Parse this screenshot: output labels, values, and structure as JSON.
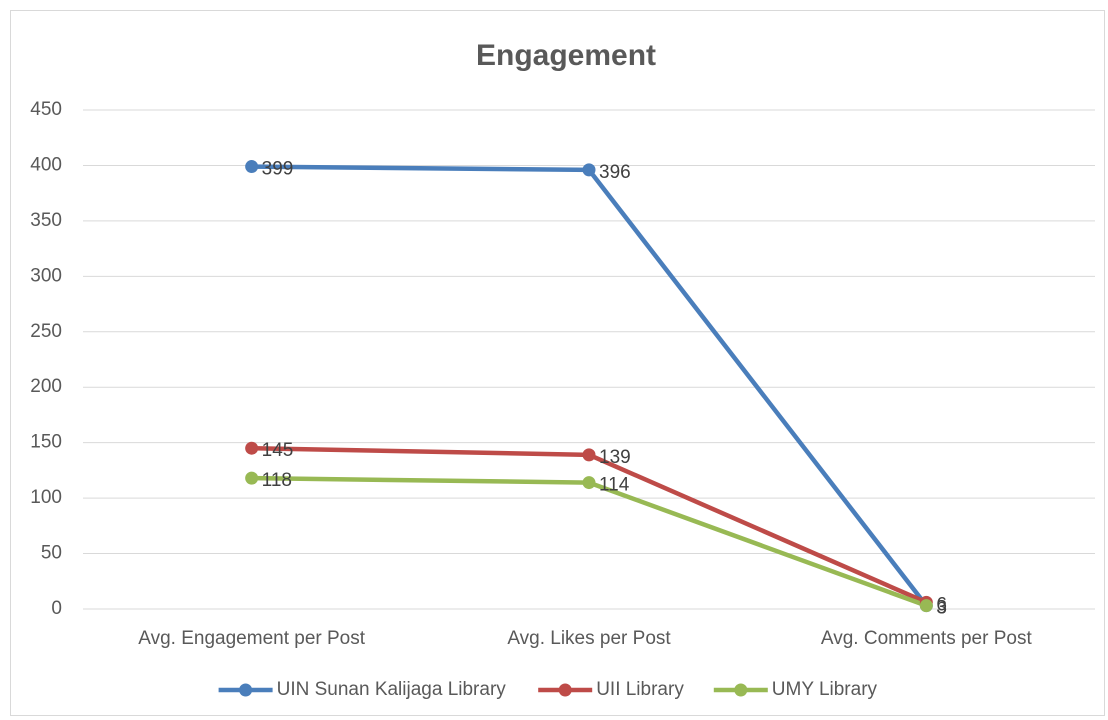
{
  "chart_data": {
    "type": "line",
    "title": "Engagement",
    "categories": [
      "Avg. Engagement per Post",
      "Avg. Likes per Post",
      "Avg. Comments per Post"
    ],
    "series": [
      {
        "name": "UIN Sunan Kalijaga Library",
        "color": "#4a7ebb",
        "values": [
          399,
          396,
          3
        ]
      },
      {
        "name": "UII Library",
        "color": "#be4b48",
        "values": [
          145,
          139,
          6
        ]
      },
      {
        "name": "UMY Library",
        "color": "#98b954",
        "values": [
          118,
          114,
          3
        ]
      }
    ],
    "ylim": [
      0,
      450
    ],
    "yticks": [
      0,
      50,
      100,
      150,
      200,
      250,
      300,
      350,
      400,
      450
    ],
    "grid": true,
    "legend": "bottom",
    "data_labels": true
  }
}
